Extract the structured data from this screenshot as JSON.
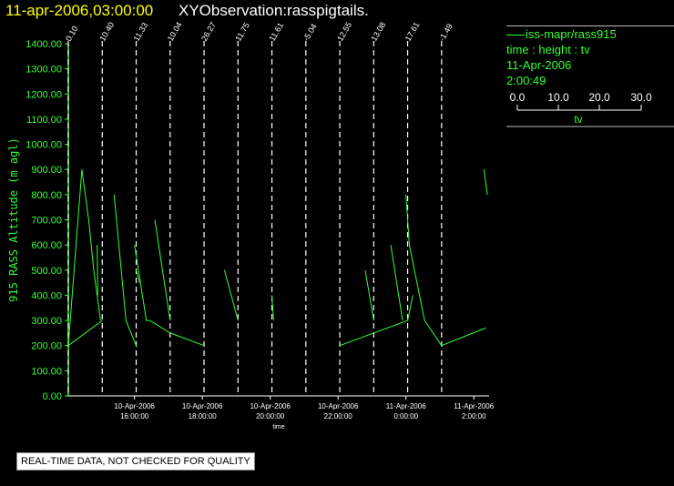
{
  "header": {
    "date_text": "11-apr-2006,03:00:00",
    "title_text": "XYObservation:rasspigtails."
  },
  "legend": {
    "series_label": "iss-mapr/rass915",
    "axes_desc": "time : height : tv",
    "date": "11-Apr-2006",
    "time": "2:00:49",
    "scale_ticks": [
      "0.0",
      "10.0",
      "20.0",
      "30.0"
    ],
    "scale_label": "tv"
  },
  "footer": {
    "quality_note": "REAL-TIME DATA, NOT CHECKED FOR QUALITY"
  },
  "colors": {
    "background": "#000000",
    "data": "#33ff33",
    "title_date": "#ffff00",
    "title_text": "#ffffff",
    "markers": "#ffffff"
  },
  "chart_data": {
    "type": "line",
    "title": "XYObservation:rasspigtails.",
    "xlabel": "time",
    "ylabel": "915 RASS Altitude (m agl)",
    "ylim": [
      0,
      1400
    ],
    "xlim_hours": [
      14.05,
      26.45
    ],
    "y_ticks": [
      "0.00",
      "100.00",
      "200.00",
      "300.00",
      "400.00",
      "500.00",
      "600.00",
      "700.00",
      "800.00",
      "900.00",
      "1000.00",
      "1100.00",
      "1200.00",
      "1300.00",
      "1400.00"
    ],
    "x_ticks": [
      {
        "h": 16,
        "date": "10-Apr-2006",
        "time": "16:00:00"
      },
      {
        "h": 18,
        "date": "10-Apr-2006",
        "time": "18:00:00"
      },
      {
        "h": 20,
        "date": "10-Apr-2006",
        "time": "20:00:00"
      },
      {
        "h": 22,
        "date": "10-Apr-2006",
        "time": "22:00:00"
      },
      {
        "h": 24,
        "date": "11-Apr-2006",
        "time": "0:00:00"
      },
      {
        "h": 26,
        "date": "11-Apr-2006",
        "time": "2:00:00"
      }
    ],
    "markers": [
      {
        "h": 14.05,
        "label": "0.10"
      },
      {
        "h": 15.05,
        "label": "10.40"
      },
      {
        "h": 16.05,
        "label": "11.33"
      },
      {
        "h": 17.05,
        "label": "10.04"
      },
      {
        "h": 18.05,
        "label": "26.27"
      },
      {
        "h": 19.05,
        "label": "11.75"
      },
      {
        "h": 20.05,
        "label": "11.61"
      },
      {
        "h": 21.05,
        "label": "-5.04"
      },
      {
        "h": 22.05,
        "label": "12.55"
      },
      {
        "h": 23.05,
        "label": "13.08"
      },
      {
        "h": 24.05,
        "label": "17.61"
      },
      {
        "h": 25.05,
        "label": "-1.49"
      }
    ],
    "series": [
      {
        "points": [
          [
            14.05,
            200
          ],
          [
            14.45,
            900
          ],
          [
            14.65,
            700
          ],
          [
            14.8,
            500
          ],
          [
            15.0,
            300
          ]
        ]
      },
      {
        "points": [
          [
            14.9,
            600
          ],
          [
            14.92,
            400
          ]
        ]
      },
      {
        "points": [
          [
            14.05,
            200
          ],
          [
            15.05,
            300
          ]
        ]
      },
      {
        "points": [
          [
            15.4,
            800
          ],
          [
            15.75,
            300
          ],
          [
            16.05,
            200
          ]
        ]
      },
      {
        "points": [
          [
            16.0,
            600
          ],
          [
            16.35,
            300
          ],
          [
            16.45,
            300
          ],
          [
            17.05,
            250
          ],
          [
            18.05,
            200
          ]
        ]
      },
      {
        "points": [
          [
            16.6,
            700
          ],
          [
            17.05,
            300
          ]
        ]
      },
      {
        "points": [
          [
            16.05,
            500
          ],
          [
            16.15,
            450
          ]
        ]
      },
      {
        "points": [
          [
            18.65,
            500
          ],
          [
            19.05,
            300
          ]
        ]
      },
      {
        "points": [
          [
            20.05,
            400
          ],
          [
            20.1,
            300
          ]
        ]
      },
      {
        "points": [
          [
            22.05,
            200
          ],
          [
            24.05,
            300
          ],
          [
            24.2,
            400
          ]
        ]
      },
      {
        "points": [
          [
            22.8,
            500
          ],
          [
            23.05,
            300
          ]
        ]
      },
      {
        "points": [
          [
            23.55,
            600
          ],
          [
            23.9,
            300
          ]
        ]
      },
      {
        "points": [
          [
            24.0,
            800
          ],
          [
            24.1,
            600
          ],
          [
            24.4,
            400
          ],
          [
            24.55,
            300
          ],
          [
            25.05,
            200
          ]
        ]
      },
      {
        "points": [
          [
            25.05,
            200
          ],
          [
            26.35,
            270
          ]
        ]
      },
      {
        "points": [
          [
            26.3,
            900
          ],
          [
            26.4,
            800
          ]
        ]
      }
    ]
  }
}
